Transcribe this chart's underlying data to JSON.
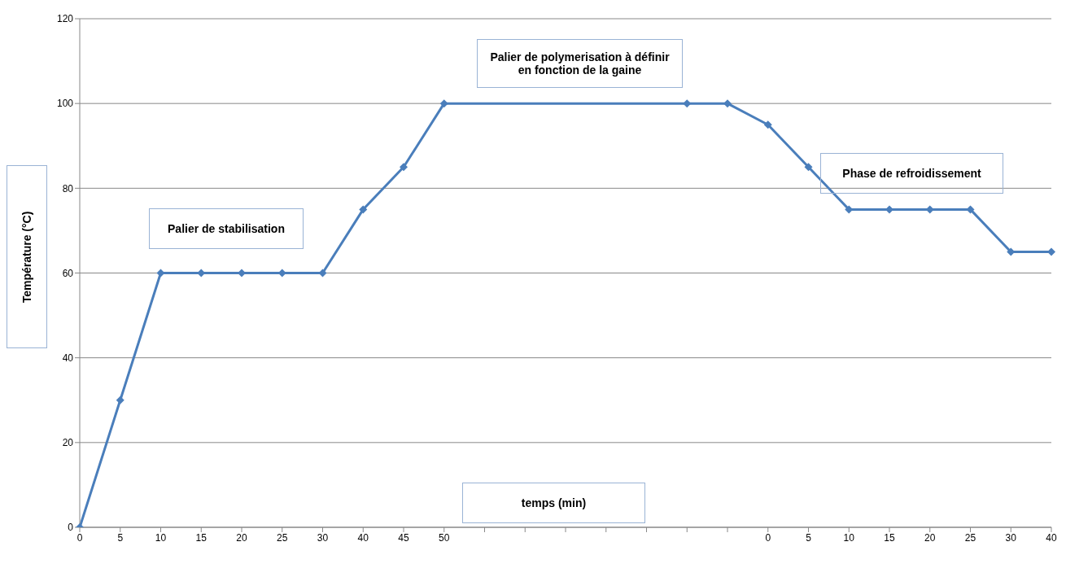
{
  "chart_data": {
    "type": "line",
    "xlabel": "temps (min)",
    "ylabel": "Température (°C)",
    "categories": [
      "0",
      "5",
      "10",
      "15",
      "20",
      "25",
      "30",
      "40",
      "45",
      "50",
      null,
      null,
      null,
      null,
      null,
      null,
      null,
      "0",
      "5",
      "10",
      "15",
      "20",
      "25",
      "30",
      "40"
    ],
    "values": [
      0,
      30,
      60,
      60,
      60,
      60,
      60,
      75,
      85,
      100,
      null,
      null,
      null,
      null,
      null,
      100,
      100,
      95,
      85,
      75,
      75,
      75,
      75,
      65,
      65
    ],
    "color": "#4a7ebb",
    "ylim": [
      0,
      120
    ],
    "yticks": [
      0,
      20,
      40,
      60,
      80,
      100,
      120
    ],
    "grid": "y",
    "marker": "diamond",
    "line_style": "solid",
    "annotations": [
      "Palier de stabilisation",
      "Palier de polymerisation à définir en fonction de la gaine",
      "Phase de refroidissement"
    ]
  }
}
